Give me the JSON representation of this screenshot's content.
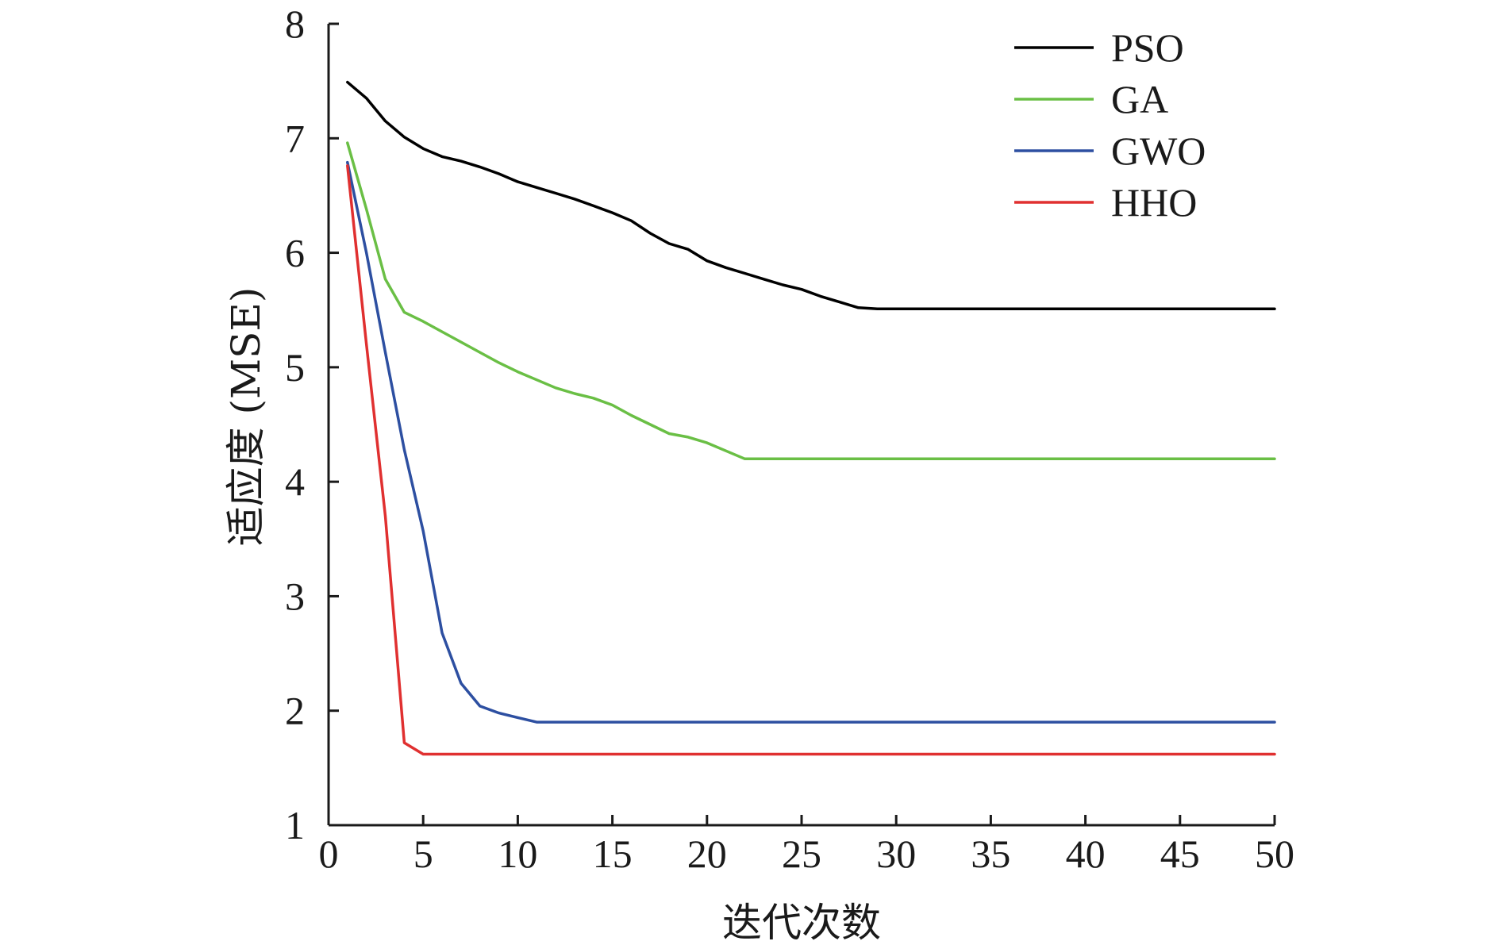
{
  "chart_data": {
    "type": "line",
    "title": "",
    "xlabel": "迭代次数",
    "ylabel": "适应度 (MSE)",
    "xlim": [
      0,
      50
    ],
    "ylim": [
      1,
      8
    ],
    "xticks": [
      0,
      5,
      10,
      15,
      20,
      25,
      30,
      35,
      40,
      45,
      50
    ],
    "yticks": [
      1,
      2,
      3,
      4,
      5,
      6,
      7,
      8
    ],
    "grid": false,
    "legend_position": "top-right",
    "series": [
      {
        "name": "PSO",
        "color": "#000000",
        "x": [
          1,
          2,
          3,
          4,
          5,
          6,
          7,
          8,
          9,
          10,
          11,
          12,
          13,
          14,
          15,
          16,
          17,
          18,
          19,
          20,
          21,
          22,
          23,
          24,
          25,
          26,
          27,
          28,
          29,
          30,
          31,
          50
        ],
        "y": [
          7.49,
          7.35,
          7.15,
          7.01,
          6.91,
          6.84,
          6.8,
          6.75,
          6.69,
          6.62,
          6.57,
          6.52,
          6.47,
          6.41,
          6.35,
          6.28,
          6.17,
          6.08,
          6.03,
          5.93,
          5.87,
          5.82,
          5.77,
          5.72,
          5.68,
          5.62,
          5.57,
          5.52,
          5.51,
          5.51,
          5.51,
          5.51
        ]
      },
      {
        "name": "GA",
        "color": "#6abf45",
        "x": [
          1,
          2,
          3,
          4,
          5,
          6,
          7,
          8,
          9,
          10,
          11,
          12,
          13,
          14,
          15,
          16,
          17,
          18,
          19,
          20,
          21,
          22,
          23,
          50
        ],
        "y": [
          6.96,
          6.38,
          5.77,
          5.48,
          5.4,
          5.31,
          5.22,
          5.13,
          5.04,
          4.96,
          4.89,
          4.82,
          4.77,
          4.73,
          4.67,
          4.58,
          4.5,
          4.42,
          4.39,
          4.34,
          4.27,
          4.2,
          4.2,
          4.2
        ]
      },
      {
        "name": "GWO",
        "color": "#2d4fa1",
        "x": [
          1,
          2,
          3,
          4,
          5,
          6,
          7,
          8,
          9,
          10,
          11,
          50
        ],
        "y": [
          6.79,
          6.0,
          5.13,
          4.28,
          3.57,
          2.68,
          2.24,
          2.04,
          1.98,
          1.94,
          1.9,
          1.9
        ]
      },
      {
        "name": "HHO",
        "color": "#e03030",
        "x": [
          1,
          2,
          3,
          4,
          5,
          50
        ],
        "y": [
          6.76,
          5.2,
          3.7,
          1.72,
          1.62,
          1.62
        ]
      }
    ]
  }
}
